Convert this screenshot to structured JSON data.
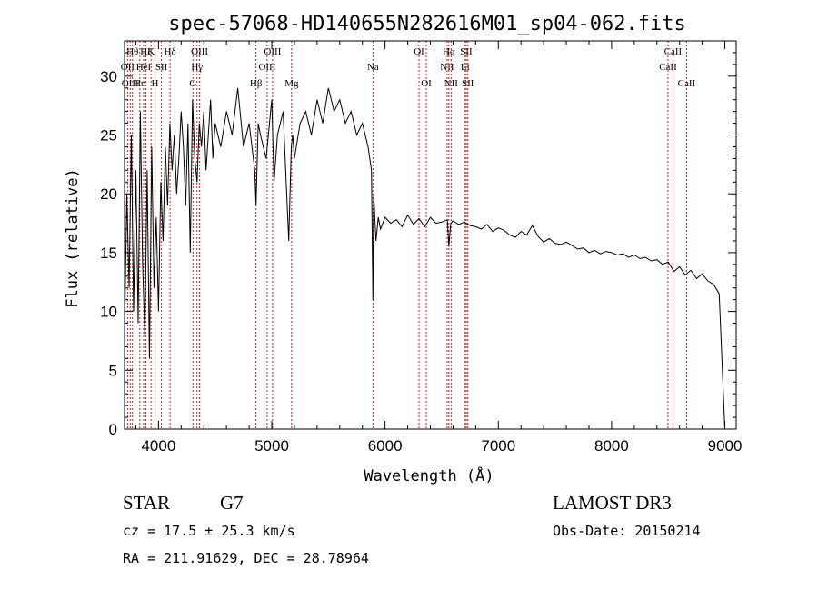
{
  "chart_data": {
    "type": "line",
    "title": "spec-57068-HD140655N282616M01_sp04-062.fits",
    "xlabel": "Wavelength (Å)",
    "ylabel": "Flux (relative)",
    "xlim": [
      3700,
      9100
    ],
    "ylim": [
      0,
      33
    ],
    "xticks": [
      4000,
      5000,
      6000,
      7000,
      8000,
      9000
    ],
    "yticks": [
      0,
      5,
      10,
      15,
      20,
      25,
      30
    ],
    "series": [
      {
        "name": "flux",
        "x": [
          3700,
          3720,
          3740,
          3760,
          3780,
          3800,
          3820,
          3840,
          3860,
          3880,
          3900,
          3920,
          3940,
          3960,
          3980,
          4000,
          4020,
          4040,
          4060,
          4080,
          4100,
          4120,
          4140,
          4160,
          4180,
          4200,
          4220,
          4240,
          4260,
          4280,
          4300,
          4320,
          4340,
          4360,
          4380,
          4400,
          4420,
          4440,
          4460,
          4480,
          4500,
          4550,
          4600,
          4650,
          4700,
          4750,
          4800,
          4850,
          4861,
          4880,
          4900,
          4950,
          5000,
          5020,
          5050,
          5100,
          5150,
          5172,
          5185,
          5200,
          5250,
          5300,
          5350,
          5400,
          5450,
          5500,
          5550,
          5600,
          5650,
          5700,
          5750,
          5800,
          5850,
          5880,
          5893,
          5900,
          5910,
          5920,
          5940,
          5960,
          6000,
          6050,
          6100,
          6150,
          6200,
          6250,
          6300,
          6350,
          6400,
          6450,
          6500,
          6550,
          6563,
          6580,
          6600,
          6650,
          6700,
          6750,
          6800,
          6850,
          6900,
          6950,
          7000,
          7050,
          7100,
          7150,
          7200,
          7250,
          7300,
          7350,
          7400,
          7450,
          7500,
          7550,
          7600,
          7650,
          7700,
          7750,
          7800,
          7850,
          7900,
          7950,
          8000,
          8050,
          8100,
          8150,
          8200,
          8250,
          8300,
          8350,
          8400,
          8450,
          8500,
          8550,
          8600,
          8650,
          8700,
          8750,
          8800,
          8850,
          8900,
          8950,
          9000
        ],
        "values": [
          8,
          20,
          12,
          25,
          10,
          22,
          9,
          27,
          14,
          8,
          22,
          6,
          24,
          12,
          18,
          10,
          21,
          16,
          24,
          19,
          26,
          22,
          25,
          20,
          23,
          27,
          24,
          19,
          26,
          15,
          28,
          23,
          21,
          26,
          24,
          27,
          22,
          25,
          28,
          23,
          26,
          24,
          27,
          25,
          29,
          24,
          26,
          22,
          19,
          26,
          25,
          23,
          28,
          21,
          25,
          27,
          16,
          24,
          25,
          23,
          26,
          27,
          25,
          28,
          26,
          29,
          27,
          28,
          26,
          27,
          25,
          26,
          24,
          22,
          11,
          20,
          18,
          16,
          18,
          17,
          18,
          17.5,
          17.8,
          17.2,
          18.2,
          17.4,
          17.9,
          17.2,
          18.0,
          17.5,
          17.6,
          17.8,
          15.5,
          17.5,
          17.7,
          17.4,
          17.6,
          17.3,
          17.2,
          17.0,
          17.4,
          16.8,
          17.1,
          16.9,
          16.5,
          16.3,
          16.8,
          16.5,
          17.3,
          16.4,
          15.9,
          16.2,
          15.8,
          15.7,
          15.9,
          15.6,
          15.3,
          15.4,
          15.0,
          15.2,
          14.9,
          15.1,
          15.0,
          14.8,
          14.9,
          14.6,
          14.8,
          14.5,
          14.6,
          14.3,
          14.4,
          14.0,
          14.2,
          13.4,
          13.8,
          13.1,
          13.5,
          12.8,
          13.2,
          12.6,
          12.3,
          11.5,
          0
        ]
      }
    ],
    "line_markers": [
      {
        "w": 3727,
        "label": "OII",
        "row": 1
      },
      {
        "w": 3750,
        "label": "OIII",
        "row": 2
      },
      {
        "w": 3770,
        "label": "Hθ",
        "row": 0
      },
      {
        "w": 3835,
        "label": "Hη",
        "row": 2
      },
      {
        "w": 3868,
        "label": "HeI",
        "row": 1
      },
      {
        "w": 3889,
        "label": "Hζ",
        "row": 0
      },
      {
        "w": 3934,
        "label": "K",
        "row": 0
      },
      {
        "w": 3969,
        "label": "H",
        "row": 2
      },
      {
        "w": 4026,
        "label": "SII",
        "row": 1
      },
      {
        "w": 4102,
        "label": "Hδ",
        "row": 0
      },
      {
        "w": 4304,
        "label": "G",
        "row": 2
      },
      {
        "w": 4340,
        "label": "Hγ",
        "row": 1
      },
      {
        "w": 4363,
        "label": "OIII",
        "row": 0
      },
      {
        "w": 4861,
        "label": "Hβ",
        "row": 2
      },
      {
        "w": 4959,
        "label": "OIII",
        "row": 1
      },
      {
        "w": 5007,
        "label": "OIII",
        "row": 0
      },
      {
        "w": 5175,
        "label": "Mg",
        "row": 2
      },
      {
        "w": 5893,
        "label": "Na",
        "row": 1
      },
      {
        "w": 6300,
        "label": "OI",
        "row": 0
      },
      {
        "w": 6364,
        "label": "OI",
        "row": 2
      },
      {
        "w": 6548,
        "label": "NII",
        "row": 1
      },
      {
        "w": 6563,
        "label": "Hα",
        "row": 0
      },
      {
        "w": 6583,
        "label": "NII",
        "row": 2
      },
      {
        "w": 6707,
        "label": "Li",
        "row": 1
      },
      {
        "w": 6717,
        "label": "SII",
        "row": 0
      },
      {
        "w": 6731,
        "label": "SII",
        "row": 2
      },
      {
        "w": 8498,
        "label": "CaII",
        "row": 1
      },
      {
        "w": 8542,
        "label": "CaII",
        "row": 0
      },
      {
        "w": 8662,
        "label": "CaII",
        "row": 2
      }
    ]
  },
  "info": {
    "object_class": "STAR",
    "subclass": "G7",
    "survey": "LAMOST DR3",
    "cz": "cz = 17.5 ± 25.3 km/s",
    "obs_date": "Obs-Date: 20150214",
    "coords": "RA = 211.91629, DEC =  28.78964"
  }
}
